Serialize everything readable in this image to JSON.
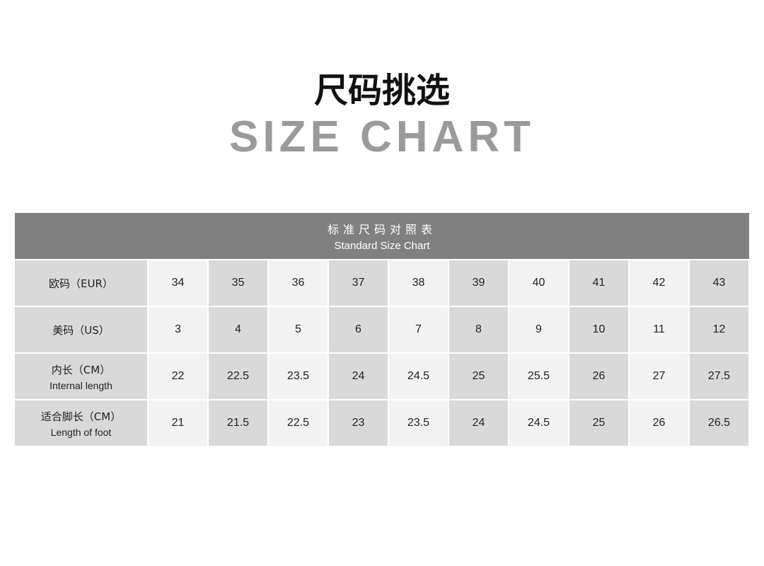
{
  "title_cn": "尺码挑选",
  "title_en": "SIZE CHART",
  "table": {
    "header_cn": "标准尺码对照表",
    "header_en": "Standard Size Chart",
    "rows": [
      {
        "label": "欧码（EUR）",
        "sub": "",
        "values": [
          "34",
          "35",
          "36",
          "37",
          "38",
          "39",
          "40",
          "41",
          "42",
          "43"
        ]
      },
      {
        "label": "美码（US）",
        "sub": "",
        "values": [
          "3",
          "4",
          "5",
          "6",
          "7",
          "8",
          "9",
          "10",
          "11",
          "12"
        ]
      },
      {
        "label": "内长（CM）",
        "sub": "Internal length",
        "values": [
          "22",
          "22.5",
          "23.5",
          "24",
          "24.5",
          "25",
          "25.5",
          "26",
          "27",
          "27.5"
        ]
      },
      {
        "label": "适合脚长（CM）",
        "sub": "Length of foot",
        "values": [
          "21",
          "21.5",
          "22.5",
          "23",
          "23.5",
          "24",
          "24.5",
          "25",
          "26",
          "26.5"
        ]
      }
    ]
  },
  "colors": {
    "header_bg": "#808080",
    "cell_light": "#f2f2f2",
    "cell_dark": "#d9d9d9",
    "subtitle": "#9a9a9a"
  }
}
